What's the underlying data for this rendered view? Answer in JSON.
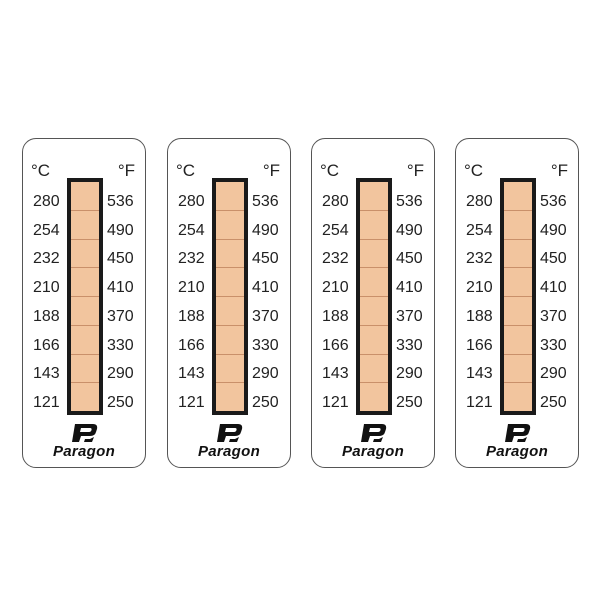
{
  "brand": "Paragon",
  "unit_c": "°C",
  "unit_f": "°F",
  "celsius": [
    "280",
    "254",
    "232",
    "210",
    "188",
    "166",
    "143",
    "121"
  ],
  "fahrenheit": [
    "536",
    "490",
    "450",
    "410",
    "370",
    "330",
    "290",
    "250"
  ],
  "colors": {
    "indicator": "#f2c59e",
    "frame": "#1a1a1a"
  },
  "label_count": 4
}
